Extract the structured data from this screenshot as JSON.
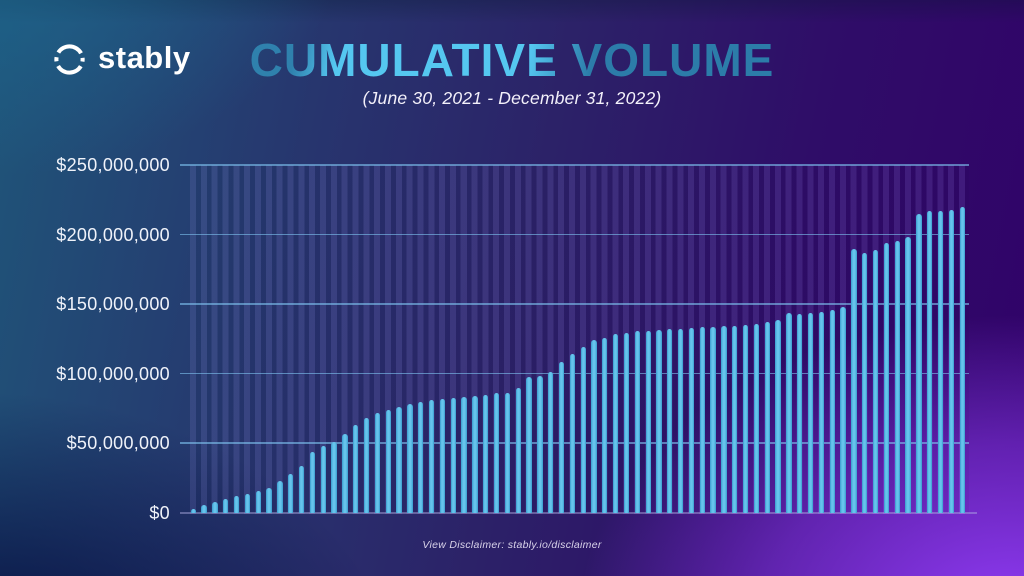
{
  "brand": {
    "name": "stably",
    "logo_icon": "dashed-circle-icon",
    "logo_color": "#ffffff"
  },
  "title": "CUMULATIVE VOLUME",
  "subtitle": "(June 30, 2021 - December 31, 2022)",
  "footer": {
    "text": "View Disclaimer: stably.io/disclaimer"
  },
  "colors": {
    "title_dark_blue": "#2f81ad",
    "title_light_blue": "#55c7f0",
    "bar_fill": "#56b9e6",
    "gridline": "#7dc0ee",
    "background_top_left": "#1f5579",
    "background_top_right": "#310269",
    "background_bottom_left": "#010236",
    "background_bottom_right": "#923df7",
    "text": "#f0f3fa"
  },
  "chart_data": {
    "type": "bar",
    "title": "CUMULATIVE VOLUME",
    "subtitle": "(June 30, 2021 - December 31, 2022)",
    "xlabel": "",
    "ylabel": "",
    "x_tick_labels_visible": false,
    "y_tick_labels": [
      "$250,000,000",
      "$200,000,000",
      "$150,000,000",
      "$100,000,000",
      "$50,000,000",
      "$0"
    ],
    "ylim": [
      0,
      250000000
    ],
    "grid": "horizontal",
    "legend": "none",
    "series_name": "Cumulative volume (USD, estimated per bar left to right)",
    "values_usd_millions": [
      3,
      5.5,
      8,
      10,
      12,
      13.5,
      16,
      18,
      23,
      28,
      34,
      43.5,
      48.5,
      51,
      57,
      63,
      68,
      71.5,
      74,
      76.5,
      78.5,
      80,
      81,
      82,
      82.5,
      83.5,
      84,
      84.5,
      86.5,
      86,
      89.5,
      97.5,
      98.5,
      101,
      108.5,
      114.5,
      119.5,
      124.5,
      125.5,
      128.5,
      129,
      130.5,
      131,
      131.5,
      132,
      132.5,
      133,
      133.5,
      133.5,
      134,
      134.5,
      135,
      135.5,
      137,
      139,
      144,
      143,
      143.5,
      144.5,
      146,
      148,
      190,
      187,
      189,
      194,
      195.5,
      198,
      215,
      217,
      217,
      217.5,
      220
    ]
  }
}
